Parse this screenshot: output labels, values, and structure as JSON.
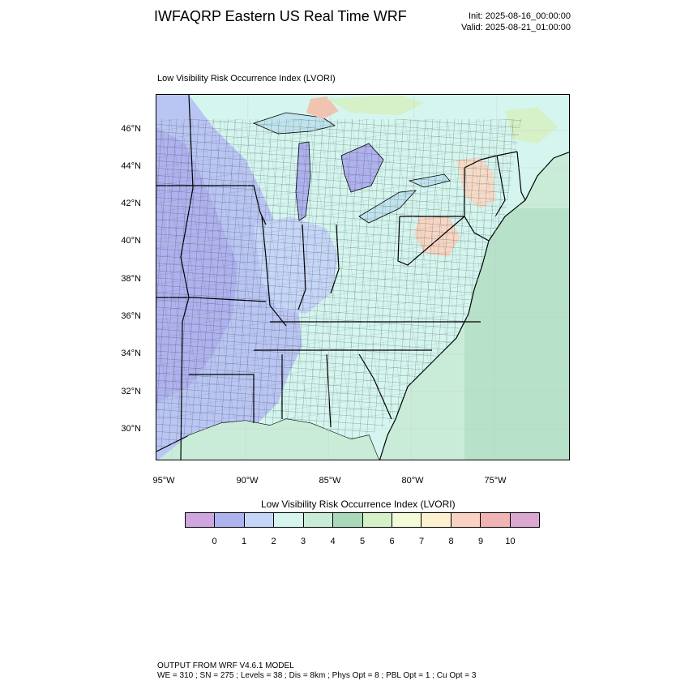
{
  "header": {
    "title": "IWFAQRP Eastern US Real Time WRF",
    "init": "Init: 2025-08-16_00:00:00",
    "valid": "Valid: 2025-08-21_01:00:00"
  },
  "plot": {
    "title": "Low Visibility Risk Occurrence Index   (LVORI)"
  },
  "map": {
    "lat_labels": [
      "46°N",
      "44°N",
      "42°N",
      "40°N",
      "38°N",
      "36°N",
      "34°N",
      "32°N",
      "30°N"
    ],
    "lon_labels": [
      "95°W",
      "90°W",
      "85°W",
      "80°W",
      "75°W"
    ],
    "projection": "lambert-conformal",
    "overlays": [
      "state-borders",
      "county-borders",
      "coastlines",
      "lakes"
    ]
  },
  "colorbar": {
    "title": "Low Visibility Risk Occurrence Index  (LVORI)",
    "ticks": [
      "0",
      "1",
      "2",
      "3",
      "4",
      "5",
      "6",
      "7",
      "8",
      "9",
      "10"
    ],
    "colors": [
      "#cfa6dd",
      "#aeb2ee",
      "#c5d6f8",
      "#d4f6ef",
      "#c9ecd8",
      "#a9d8bb",
      "#d6f0c8",
      "#f4fbd8",
      "#fdf2d0",
      "#f9d2c4",
      "#f0b4b4",
      "#dba8d2"
    ]
  },
  "footer": {
    "line1": "OUTPUT FROM WRF V4.6.1 MODEL",
    "line2": "WE = 310 ; SN = 275 ; Levels = 38 ; Dis = 8km ; Phys Opt = 8 ; PBL Opt = 1 ; Cu Opt = 3"
  }
}
